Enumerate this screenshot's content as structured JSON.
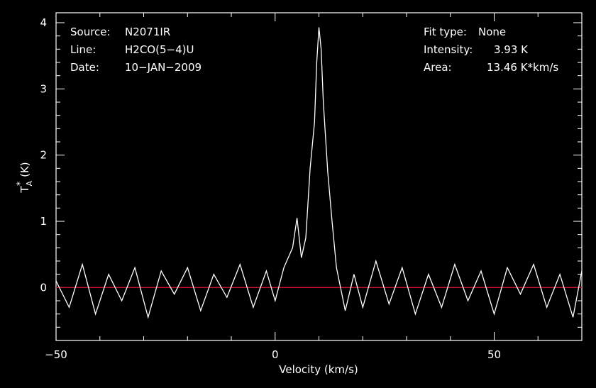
{
  "header_left": {
    "source_label": "Source:",
    "source_value": "N2071IR",
    "line_label": "Line:",
    "line_value": "H2CO(5−4)U",
    "date_label": "Date:",
    "date_value": "10−JAN−2009"
  },
  "header_right": {
    "fit_label": "Fit type:",
    "fit_value": "None",
    "intensity_label": "Intensity:",
    "intensity_value": "3.93 K",
    "area_label": "Area:",
    "area_value": "13.46 K*km/s"
  },
  "chart_data": {
    "type": "line",
    "xlabel": "Velocity (km/s)",
    "ylabel_main": "T",
    "ylabel_sup": "*",
    "ylabel_sub": "A",
    "ylabel_unit": "(K)",
    "xlim": [
      -50,
      70
    ],
    "ylim": [
      -0.8,
      4.15
    ],
    "xticks": [
      -50,
      0,
      50
    ],
    "xtick_labels": [
      "−50",
      "0",
      "50"
    ],
    "yticks": [
      0,
      1,
      2,
      3,
      4
    ],
    "ytick_labels": [
      "0",
      "1",
      "2",
      "3",
      "4"
    ],
    "baseline": 0,
    "colors": {
      "spectrum": "#ffffff",
      "baseline": "#c8102e",
      "axes": "#ffffff"
    },
    "peak": {
      "x": 10,
      "y": 3.93
    },
    "series": [
      {
        "x": [
          -50,
          -47,
          -44,
          -41,
          -38,
          -35,
          -32,
          -29,
          -26,
          -23,
          -20,
          -17,
          -14,
          -11,
          -8,
          -5,
          -2,
          0,
          2,
          4,
          5,
          6,
          7,
          8,
          9,
          9.5,
          10,
          10.5,
          11,
          12,
          13,
          14,
          16,
          18,
          20,
          23,
          26,
          29,
          32,
          35,
          38,
          41,
          44,
          47,
          50,
          53,
          56,
          59,
          62,
          65,
          68,
          70
        ],
        "y": [
          0.1,
          -0.3,
          0.35,
          -0.4,
          0.2,
          -0.2,
          0.3,
          -0.45,
          0.25,
          -0.1,
          0.3,
          -0.35,
          0.2,
          -0.15,
          0.35,
          -0.3,
          0.25,
          -0.2,
          0.3,
          0.6,
          1.05,
          0.45,
          0.75,
          1.8,
          2.5,
          3.4,
          3.93,
          3.6,
          2.8,
          1.75,
          1.0,
          0.3,
          -0.35,
          0.2,
          -0.3,
          0.4,
          -0.25,
          0.3,
          -0.4,
          0.2,
          -0.3,
          0.35,
          -0.2,
          0.25,
          -0.4,
          0.3,
          -0.1,
          0.35,
          -0.3,
          0.2,
          -0.45,
          0.25
        ]
      }
    ]
  }
}
